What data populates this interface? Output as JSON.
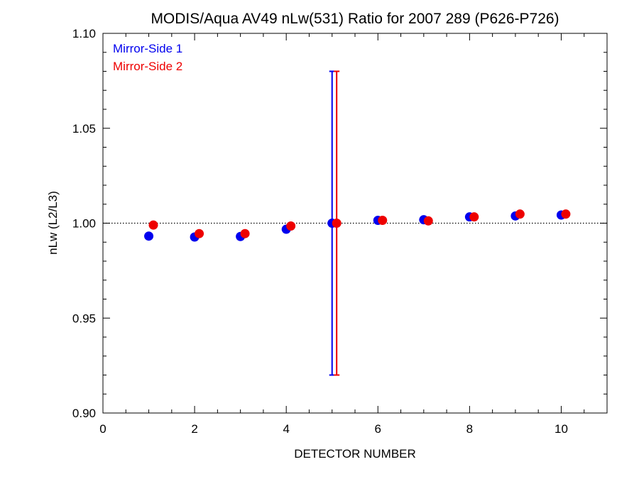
{
  "chart_data": {
    "type": "scatter",
    "title": "MODIS/Aqua AV49 nLw(531) Ratio for 2007 289 (P626-P726)",
    "xlabel": "DETECTOR NUMBER",
    "ylabel": "nLw (L2/L3)",
    "xlim": [
      0,
      11
    ],
    "ylim": [
      0.9,
      1.1
    ],
    "xticks": [
      0,
      2,
      4,
      6,
      8,
      10
    ],
    "xtick_labels": [
      "0",
      "2",
      "4",
      "6",
      "8",
      "10"
    ],
    "yticks": [
      0.9,
      0.95,
      1.0,
      1.05,
      1.1
    ],
    "ytick_labels": [
      "0.90",
      "0.95",
      "1.00",
      "1.05",
      "1.10"
    ],
    "reference_line": 1.0,
    "legend_position": "top-left",
    "series": [
      {
        "name": "Mirror-Side 1",
        "color": "#0000ee",
        "x": [
          1,
          2,
          3,
          4,
          5,
          6,
          7,
          8,
          9,
          10
        ],
        "y": [
          0.9932,
          0.9927,
          0.993,
          0.9968,
          1.0,
          1.0015,
          1.0018,
          1.0033,
          1.0038,
          1.0043
        ],
        "error_bars": [
          {
            "x": 5,
            "low": 0.92,
            "high": 1.08
          }
        ]
      },
      {
        "name": "Mirror-Side 2",
        "color": "#ee0000",
        "x": [
          1.1,
          2.1,
          3.1,
          4.1,
          5.1,
          6.1,
          7.1,
          8.1,
          9.1,
          10.1
        ],
        "y": [
          0.999,
          0.9945,
          0.9945,
          0.9985,
          1.0,
          1.0015,
          1.0012,
          1.0033,
          1.0048,
          1.0048
        ],
        "error_bars": [
          {
            "x": 5.1,
            "low": 0.92,
            "high": 1.08
          }
        ]
      }
    ]
  }
}
